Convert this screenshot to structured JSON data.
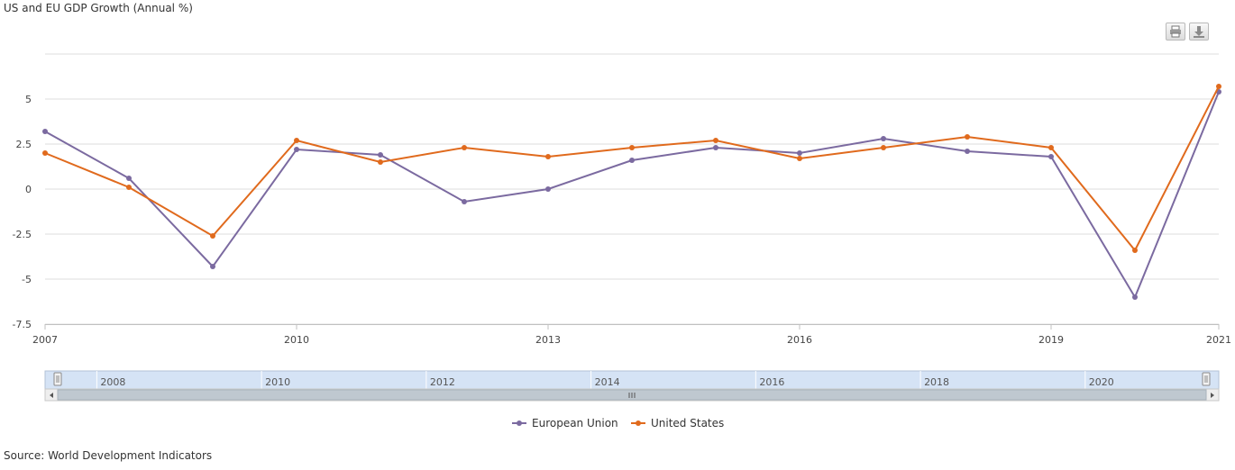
{
  "chart_data": {
    "type": "line",
    "title": "US and EU GDP Growth (Annual %)",
    "x": [
      2007,
      2008,
      2009,
      2010,
      2011,
      2012,
      2013,
      2014,
      2015,
      2016,
      2017,
      2018,
      2019,
      2020,
      2021
    ],
    "x_ticks": [
      "2007",
      "2010",
      "2013",
      "2016",
      "2019",
      "2021"
    ],
    "y_ticks": [
      "5",
      "2.5",
      "0",
      "-2.5",
      "-5",
      "-7.5"
    ],
    "ylim": [
      -7.5,
      7.5
    ],
    "grid": true,
    "legend_position": "bottom",
    "series": [
      {
        "name": "European Union",
        "color": "#7b6aa0",
        "values": [
          3.2,
          0.6,
          -4.3,
          2.2,
          1.9,
          -0.7,
          0.0,
          1.6,
          2.3,
          2.0,
          2.8,
          2.1,
          1.8,
          -6.0,
          5.4
        ]
      },
      {
        "name": "United States",
        "color": "#e06a1d",
        "values": [
          2.0,
          0.1,
          -2.6,
          2.7,
          1.5,
          2.3,
          1.8,
          2.3,
          2.7,
          1.7,
          2.3,
          2.9,
          2.3,
          -3.4,
          5.7
        ]
      }
    ]
  },
  "navigator": {
    "labels": [
      "2008",
      "2010",
      "2012",
      "2014",
      "2016",
      "2018",
      "2020"
    ]
  },
  "toolbar": {
    "print_icon": "printer-icon",
    "download_icon": "download-icon"
  },
  "source": "Source: World Development Indicators"
}
